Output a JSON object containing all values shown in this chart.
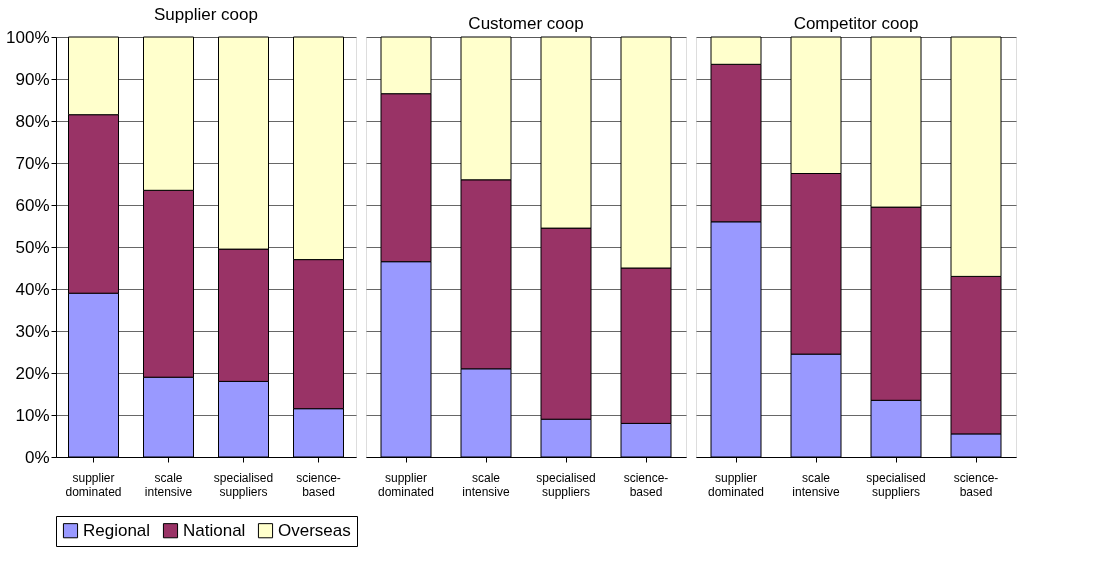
{
  "chart_data": [
    {
      "type": "bar",
      "stacked": true,
      "title": "Supplier coop",
      "categories": [
        "supplier\ndominated",
        "scale\nintensive",
        "specialised\nsuppliers",
        "science-\nbased"
      ],
      "series": [
        {
          "name": "Regional",
          "color": "#9999ff",
          "values": [
            39,
            19,
            18,
            11.5
          ]
        },
        {
          "name": "National",
          "color": "#993366",
          "values": [
            42.5,
            44.5,
            31.5,
            35.5
          ]
        },
        {
          "name": "Overseas",
          "color": "#ffffcc",
          "values": [
            18.5,
            36.5,
            50.5,
            53
          ]
        }
      ],
      "ylim": [
        0,
        100
      ],
      "yticks": [
        {
          "value": 0,
          "label": "0%"
        },
        {
          "value": 10,
          "label": "10%"
        },
        {
          "value": 20,
          "label": "20%"
        },
        {
          "value": 30,
          "label": "30%"
        },
        {
          "value": 40,
          "label": "40%"
        },
        {
          "value": 50,
          "label": "50%"
        },
        {
          "value": 60,
          "label": "60%"
        },
        {
          "value": 70,
          "label": "70%"
        },
        {
          "value": 80,
          "label": "80%"
        },
        {
          "value": 90,
          "label": "90%"
        },
        {
          "value": 100,
          "label": "100%"
        }
      ],
      "grid": "y",
      "legend": "bottom"
    },
    {
      "type": "bar",
      "stacked": true,
      "title": "Customer coop",
      "categories": [
        "supplier\ndominated",
        "scale\nintensive",
        "specialised\nsuppliers",
        "science-\nbased"
      ],
      "series": [
        {
          "name": "Regional",
          "color": "#9999ff",
          "values": [
            46.5,
            21,
            9,
            8
          ]
        },
        {
          "name": "National",
          "color": "#993366",
          "values": [
            40,
            45,
            45.5,
            37
          ]
        },
        {
          "name": "Overseas",
          "color": "#ffffcc",
          "values": [
            13.5,
            34,
            45.5,
            55
          ]
        }
      ],
      "ylim": [
        0,
        100
      ],
      "yticks": [
        {
          "value": 0,
          "label": null
        },
        {
          "value": 10,
          "label": null
        },
        {
          "value": 20,
          "label": null
        },
        {
          "value": 30,
          "label": null
        },
        {
          "value": 40,
          "label": null
        },
        {
          "value": 50,
          "label": null
        },
        {
          "value": 60,
          "label": null
        },
        {
          "value": 70,
          "label": null
        },
        {
          "value": 80,
          "label": null
        },
        {
          "value": 90,
          "label": null
        },
        {
          "value": 100,
          "label": null
        }
      ],
      "grid": "y",
      "tick_labels": "x"
    },
    {
      "type": "bar",
      "stacked": true,
      "title": "Competitor coop",
      "categories": [
        "supplier\ndominated",
        "scale\nintensive",
        "specialised\nsuppliers",
        "science-\nbased"
      ],
      "series": [
        {
          "name": "Regional",
          "color": "#9999ff",
          "values": [
            56,
            24.5,
            13.5,
            5.5
          ]
        },
        {
          "name": "National",
          "color": "#993366",
          "values": [
            37.5,
            43,
            46,
            37.5
          ]
        },
        {
          "name": "Overseas",
          "color": "#ffffcc",
          "values": [
            6.5,
            32.5,
            40.5,
            57
          ]
        }
      ],
      "ylim": [
        0,
        100
      ],
      "yticks": [
        {
          "value": 0,
          "label": null
        },
        {
          "value": 10,
          "label": null
        },
        {
          "value": 20,
          "label": null
        },
        {
          "value": 30,
          "label": null
        },
        {
          "value": 40,
          "label": null
        },
        {
          "value": 50,
          "label": null
        },
        {
          "value": 60,
          "label": null
        },
        {
          "value": 70,
          "label": null
        },
        {
          "value": 80,
          "label": null
        },
        {
          "value": 90,
          "label": null
        },
        {
          "value": 100,
          "label": null
        }
      ],
      "grid": "y",
      "tick_labels": "x"
    }
  ]
}
